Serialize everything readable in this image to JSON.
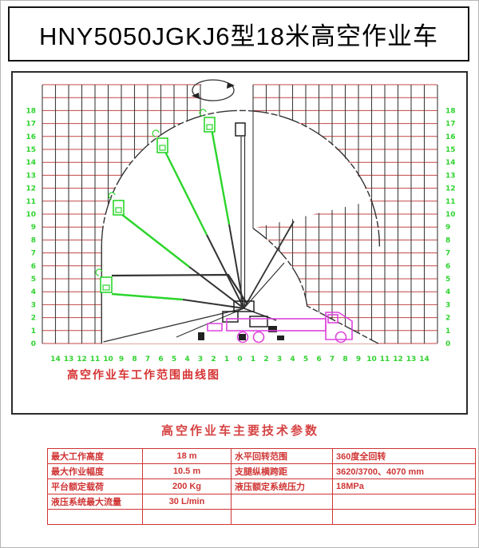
{
  "title": "HNY5050JGKJ6型18米高空作业车",
  "diagram": {
    "caption": "高空作业车工作范围曲线图",
    "x_axis_labels": [
      "14",
      "13",
      "12",
      "11",
      "10",
      "9",
      "8",
      "7",
      "6",
      "5",
      "4",
      "3",
      "2",
      "1",
      "0",
      "1",
      "2",
      "3",
      "4",
      "5",
      "6",
      "7",
      "8",
      "9",
      "10",
      "11",
      "12",
      "13",
      "14"
    ],
    "y_axis_labels": [
      "18",
      "17",
      "16",
      "15",
      "14",
      "13",
      "12",
      "11",
      "10",
      "9",
      "8",
      "7",
      "6",
      "5",
      "4",
      "3",
      "2",
      "1",
      "0"
    ],
    "max_height_m": 18,
    "max_reach_m": 10.5,
    "colors": {
      "grid_horizontal": "#c34747",
      "grid_vertical": "#3d3d3d",
      "axis_text": "#2fd32f",
      "boom_green": "#2bd52b",
      "truck_magenta": "#dd44dd",
      "caption_red": "#d63333",
      "envelope_black": "#333333",
      "table_red": "#d03434"
    }
  },
  "table": {
    "title": "高空作业车主要技术参数",
    "rows": [
      {
        "label1": "最大工作高度",
        "value1": "18 m",
        "label2": "水平回转范围",
        "value2": "360度全回转"
      },
      {
        "label1": "最大作业幅度",
        "value1": "10.5 m",
        "label2": "支腿纵横跨距",
        "value2": "3620/3700、4070 mm"
      },
      {
        "label1": "平台额定载荷",
        "value1": "200 Kg",
        "label2": "液压额定系统压力",
        "value2": "18MPa"
      },
      {
        "label1": "液压系统最大流量",
        "value1": "30 L/min",
        "label2": "",
        "value2": ""
      },
      {
        "label1": "",
        "value1": "",
        "label2": "",
        "value2": ""
      }
    ]
  }
}
